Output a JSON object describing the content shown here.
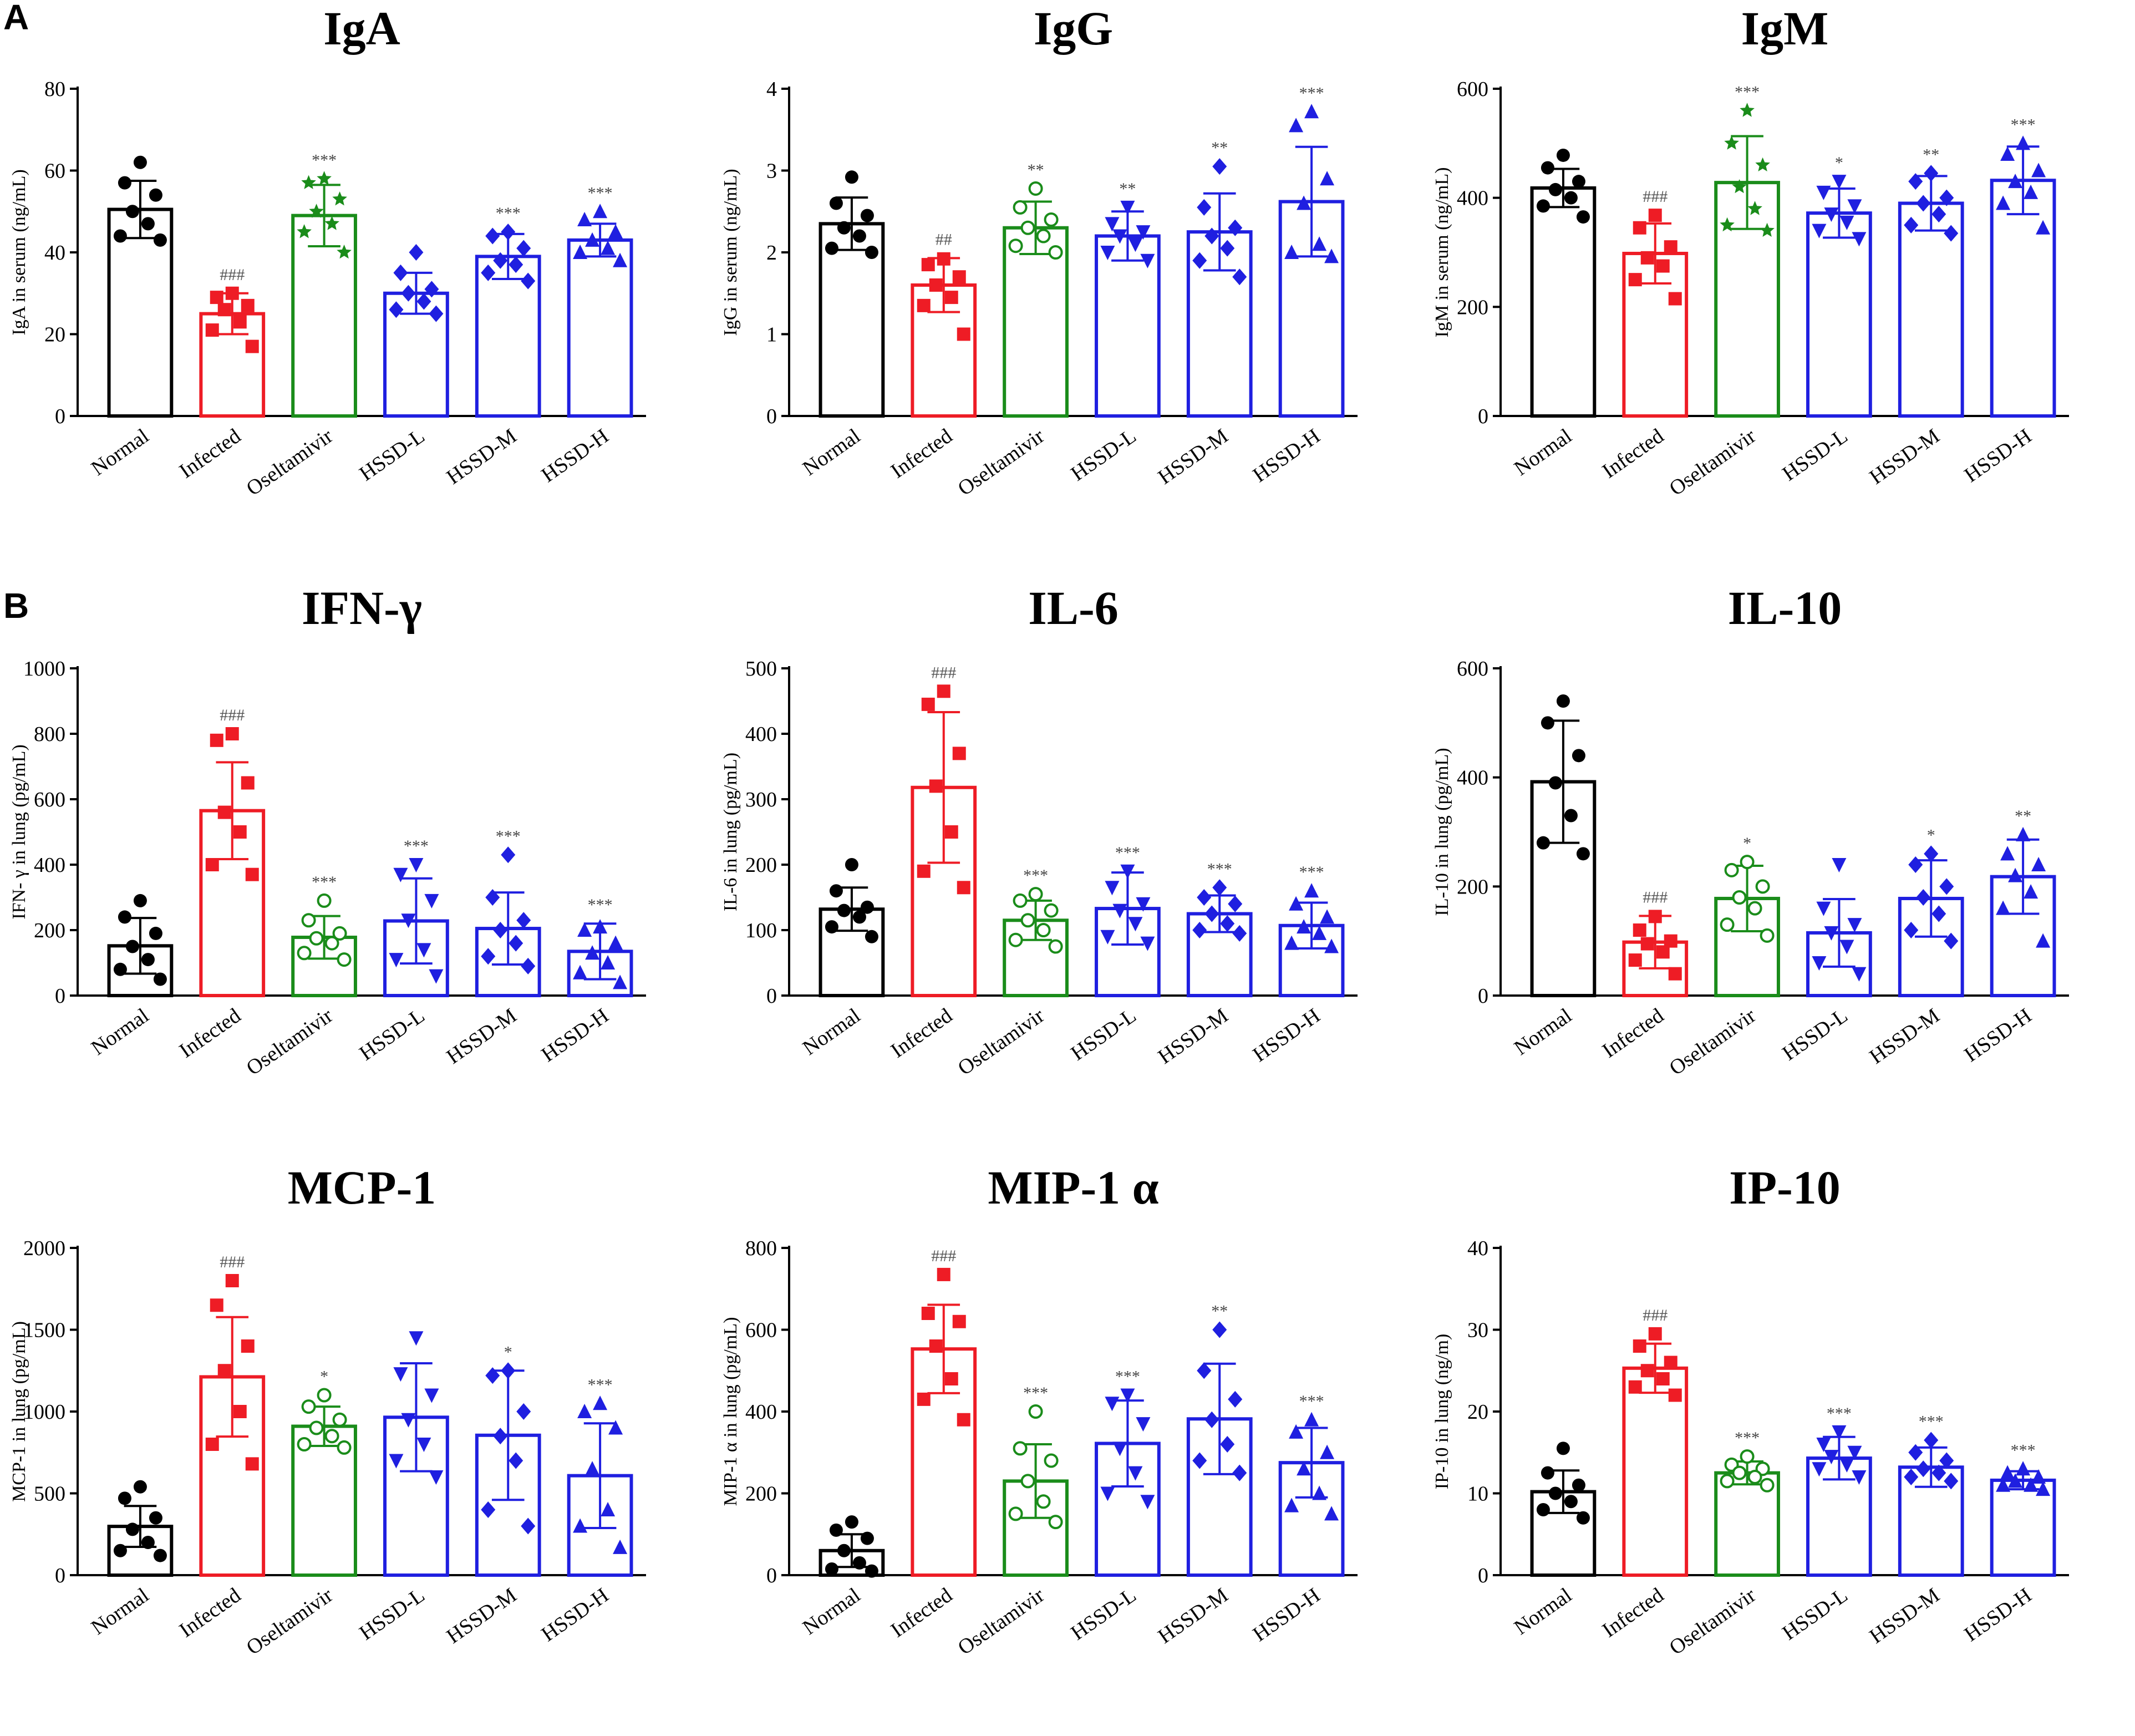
{
  "panels": [
    {
      "label": "A"
    },
    {
      "label": "B"
    }
  ],
  "groups": [
    "Normal",
    "Infected",
    "Oseltamivir",
    "HSSD-L",
    "HSSD-M",
    "HSSD-H"
  ],
  "colors": {
    "Normal": "#000000",
    "Infected": "#ee1c25",
    "Oseltamivir": "#1a8c1a",
    "HSSD-L": "#1f1fe0",
    "HSSD-M": "#1f1fe0",
    "HSSD-H": "#1f1fe0",
    "sig_gray": "#555555"
  },
  "chart_data": [
    {
      "type": "bar",
      "title": "IgA",
      "ylabel": "IgA in serum (ng/mL)",
      "ylim": [
        0,
        80
      ],
      "yticks": [
        0,
        20,
        40,
        60,
        80
      ],
      "categories": [
        "Normal",
        "Infected",
        "Oseltamivir",
        "HSSD-L",
        "HSSD-M",
        "HSSD-H"
      ],
      "values": [
        50.5,
        25,
        49,
        30,
        39,
        43
      ],
      "errors": [
        7,
        5,
        7.5,
        5,
        5.5,
        4
      ],
      "significance": [
        "",
        "###",
        "***",
        "",
        "***",
        "***"
      ],
      "points": [
        [
          62,
          57,
          54,
          50,
          47,
          44,
          43
        ],
        [
          30,
          29,
          27,
          26,
          23,
          21,
          17
        ],
        [
          58,
          57,
          53,
          50,
          47,
          45,
          40
        ],
        [
          40,
          35,
          31,
          30,
          28,
          26,
          25
        ],
        [
          45,
          44,
          41,
          38,
          37,
          35,
          33
        ],
        [
          50,
          48,
          45,
          43,
          41,
          40,
          38
        ]
      ],
      "markers": [
        "circle",
        "square",
        "star",
        "diamond",
        "diamond",
        "triangle"
      ]
    },
    {
      "type": "bar",
      "title": "IgG",
      "ylabel": "IgG in serum (ng/mL)",
      "ylim": [
        0,
        4
      ],
      "yticks": [
        0,
        1,
        2,
        3,
        4
      ],
      "categories": [
        "Normal",
        "Infected",
        "Oseltamivir",
        "HSSD-L",
        "HSSD-M",
        "HSSD-H"
      ],
      "values": [
        2.35,
        1.6,
        2.3,
        2.2,
        2.25,
        2.62
      ],
      "errors": [
        0.32,
        0.33,
        0.32,
        0.3,
        0.47,
        0.67
      ],
      "significance": [
        "",
        "##",
        "**",
        "**",
        "**",
        "***"
      ],
      "points": [
        [
          2.92,
          2.6,
          2.45,
          2.3,
          2.2,
          2.05,
          2.0
        ],
        [
          1.92,
          1.85,
          1.7,
          1.6,
          1.45,
          1.35,
          1.0
        ],
        [
          2.78,
          2.55,
          2.4,
          2.3,
          2.2,
          2.08,
          2.0
        ],
        [
          2.55,
          2.35,
          2.25,
          2.2,
          2.1,
          2.0,
          1.9
        ],
        [
          3.05,
          2.55,
          2.3,
          2.2,
          2.05,
          1.9,
          1.7
        ],
        [
          3.72,
          3.55,
          2.9,
          2.6,
          2.1,
          2.0,
          1.95
        ]
      ],
      "markers": [
        "circle",
        "square",
        "circle-open",
        "triangle-down",
        "diamond",
        "triangle"
      ]
    },
    {
      "type": "bar",
      "title": "IgM",
      "ylabel": "IgM in serum (ng/mL)",
      "ylim": [
        0,
        600
      ],
      "yticks": [
        0,
        200,
        400,
        600
      ],
      "categories": [
        "Normal",
        "Infected",
        "Oseltamivir",
        "HSSD-L",
        "HSSD-M",
        "HSSD-H"
      ],
      "values": [
        418,
        298,
        428,
        372,
        390,
        432
      ],
      "errors": [
        35,
        55,
        85,
        45,
        50,
        62
      ],
      "significance": [
        "",
        "###",
        "***",
        "*",
        "**",
        "***"
      ],
      "points": [
        [
          478,
          455,
          430,
          415,
          400,
          385,
          365
        ],
        [
          368,
          345,
          310,
          290,
          275,
          250,
          215
        ],
        [
          560,
          500,
          460,
          420,
          380,
          350,
          340
        ],
        [
          430,
          410,
          385,
          370,
          355,
          340,
          325
        ],
        [
          445,
          430,
          400,
          390,
          370,
          350,
          335
        ],
        [
          500,
          480,
          450,
          430,
          410,
          390,
          345
        ]
      ],
      "markers": [
        "circle",
        "square",
        "star",
        "triangle-down",
        "diamond",
        "triangle"
      ]
    },
    {
      "type": "bar",
      "title": "IFN-γ",
      "ylabel": "IFN- γ  in lung (pg/mL)",
      "ylim": [
        0,
        1000
      ],
      "yticks": [
        0,
        200,
        400,
        600,
        800,
        1000
      ],
      "categories": [
        "Normal",
        "Infected",
        "Oseltamivir",
        "HSSD-L",
        "HSSD-M",
        "HSSD-H"
      ],
      "values": [
        152,
        565,
        178,
        228,
        205,
        135
      ],
      "errors": [
        85,
        148,
        65,
        130,
        110,
        85
      ],
      "significance": [
        "",
        "###",
        "***",
        "***",
        "***",
        "***"
      ],
      "points": [
        [
          290,
          240,
          190,
          150,
          110,
          80,
          50
        ],
        [
          800,
          780,
          650,
          560,
          500,
          400,
          370
        ],
        [
          290,
          230,
          190,
          175,
          160,
          130,
          110
        ],
        [
          400,
          370,
          290,
          230,
          140,
          110,
          60
        ],
        [
          430,
          300,
          230,
          200,
          160,
          120,
          90
        ],
        [
          210,
          200,
          160,
          130,
          100,
          70,
          40
        ]
      ],
      "markers": [
        "circle",
        "square",
        "circle-open",
        "triangle-down",
        "diamond",
        "triangle"
      ]
    },
    {
      "type": "bar",
      "title": "IL-6",
      "ylabel": "IL-6 in lung (pg/mL)",
      "ylim": [
        0,
        500
      ],
      "yticks": [
        0,
        100,
        200,
        300,
        400,
        500
      ],
      "categories": [
        "Normal",
        "Infected",
        "Oseltamivir",
        "HSSD-L",
        "HSSD-M",
        "HSSD-H"
      ],
      "values": [
        132,
        318,
        115,
        133,
        125,
        107
      ],
      "errors": [
        33,
        115,
        30,
        55,
        28,
        35
      ],
      "significance": [
        "",
        "###",
        "***",
        "***",
        "***",
        "***"
      ],
      "points": [
        [
          200,
          160,
          135,
          130,
          120,
          105,
          90
        ],
        [
          465,
          445,
          370,
          320,
          250,
          190,
          165
        ],
        [
          155,
          145,
          130,
          115,
          100,
          85,
          75
        ],
        [
          190,
          165,
          140,
          130,
          110,
          90,
          80
        ],
        [
          165,
          150,
          140,
          125,
          110,
          100,
          95
        ],
        [
          160,
          140,
          120,
          105,
          95,
          80,
          75
        ]
      ],
      "markers": [
        "circle",
        "square",
        "circle-open",
        "triangle-down",
        "diamond",
        "triangle"
      ]
    },
    {
      "type": "bar",
      "title": "IL-10",
      "ylabel": "IL-10 in lung (pg/mL)",
      "ylim": [
        0,
        600
      ],
      "yticks": [
        0,
        200,
        400,
        600
      ],
      "categories": [
        "Normal",
        "Infected",
        "Oseltamivir",
        "HSSD-L",
        "HSSD-M",
        "HSSD-H"
      ],
      "values": [
        392,
        98,
        178,
        115,
        178,
        218
      ],
      "errors": [
        112,
        48,
        60,
        62,
        70,
        68
      ],
      "significance": [
        "",
        "###",
        "*",
        "",
        "*",
        "**"
      ],
      "points": [
        [
          540,
          500,
          440,
          390,
          330,
          280,
          260
        ],
        [
          145,
          120,
          100,
          95,
          80,
          65,
          40
        ],
        [
          245,
          230,
          200,
          180,
          160,
          130,
          110
        ],
        [
          240,
          160,
          130,
          115,
          90,
          60,
          40
        ],
        [
          260,
          240,
          200,
          180,
          150,
          120,
          100
        ],
        [
          295,
          260,
          240,
          220,
          190,
          160,
          100
        ]
      ],
      "markers": [
        "circle",
        "square",
        "circle-open",
        "triangle-down",
        "diamond",
        "triangle"
      ]
    },
    {
      "type": "bar",
      "title": "MCP-1",
      "ylabel": "MCP-1 in lung (pg/mL)",
      "ylim": [
        0,
        2000
      ],
      "yticks": [
        0,
        500,
        1000,
        1500,
        2000
      ],
      "categories": [
        "Normal",
        "Infected",
        "Oseltamivir",
        "HSSD-L",
        "HSSD-M",
        "HSSD-H"
      ],
      "values": [
        298,
        1212,
        910,
        965,
        855,
        608
      ],
      "errors": [
        125,
        365,
        120,
        330,
        395,
        320
      ],
      "significance": [
        "",
        "###",
        "*",
        "",
        "*",
        "***"
      ],
      "points": [
        [
          540,
          470,
          350,
          280,
          200,
          150,
          120
        ],
        [
          1800,
          1650,
          1400,
          1250,
          1000,
          800,
          680
        ],
        [
          1100,
          1030,
          950,
          900,
          850,
          800,
          780
        ],
        [
          1450,
          1230,
          1100,
          950,
          800,
          700,
          600
        ],
        [
          1250,
          1220,
          1000,
          850,
          700,
          400,
          300
        ],
        [
          1050,
          1000,
          900,
          650,
          400,
          300,
          170
        ]
      ],
      "markers": [
        "circle",
        "square",
        "circle-open",
        "triangle-down",
        "diamond",
        "triangle"
      ]
    },
    {
      "type": "bar",
      "title": "MIP-1 α",
      "ylabel": "MIP-1  α  in lung (pg/mL)",
      "ylim": [
        0,
        800
      ],
      "yticks": [
        0,
        200,
        400,
        600,
        800
      ],
      "categories": [
        "Normal",
        "Infected",
        "Oseltamivir",
        "HSSD-L",
        "HSSD-M",
        "HSSD-H"
      ],
      "values": [
        60,
        553,
        230,
        322,
        382,
        275
      ],
      "errors": [
        40,
        108,
        90,
        105,
        135,
        85
      ],
      "significance": [
        "",
        "###",
        "***",
        "***",
        "**",
        "***"
      ],
      "points": [
        [
          130,
          110,
          90,
          60,
          30,
          15,
          10
        ],
        [
          735,
          640,
          620,
          560,
          480,
          430,
          380
        ],
        [
          400,
          310,
          280,
          230,
          180,
          150,
          130
        ],
        [
          440,
          420,
          370,
          310,
          250,
          200,
          180
        ],
        [
          600,
          500,
          430,
          380,
          320,
          280,
          250
        ],
        [
          380,
          350,
          300,
          260,
          200,
          170,
          150
        ]
      ],
      "markers": [
        "circle",
        "square",
        "circle-open",
        "triangle-down",
        "diamond",
        "triangle"
      ]
    },
    {
      "type": "bar",
      "title": "IP-10",
      "ylabel": "IP-10 in lung (ng/m)",
      "ylim": [
        0,
        40
      ],
      "yticks": [
        0,
        10,
        20,
        30,
        40
      ],
      "categories": [
        "Normal",
        "Infected",
        "Oseltamivir",
        "HSSD-L",
        "HSSD-M",
        "HSSD-H"
      ],
      "values": [
        10.2,
        25.3,
        12.5,
        14.3,
        13.2,
        11.6
      ],
      "errors": [
        2.6,
        3,
        1.4,
        2.6,
        2.4,
        1.1
      ],
      "significance": [
        "",
        "###",
        "***",
        "***",
        "***",
        "***"
      ],
      "points": [
        [
          15.5,
          12.5,
          11,
          10,
          9,
          8,
          7
        ],
        [
          29.5,
          28,
          26,
          25,
          24,
          23,
          22
        ],
        [
          14.5,
          13.5,
          13,
          12.5,
          12,
          11.5,
          11
        ],
        [
          17.5,
          16,
          15,
          14.5,
          13.5,
          13,
          12
        ],
        [
          16.5,
          15,
          14,
          13,
          12.5,
          12,
          11.5
        ],
        [
          13,
          12.5,
          12,
          11.5,
          11,
          11,
          10.5
        ]
      ],
      "markers": [
        "circle",
        "square",
        "circle-open",
        "triangle-down",
        "diamond",
        "triangle"
      ]
    }
  ]
}
